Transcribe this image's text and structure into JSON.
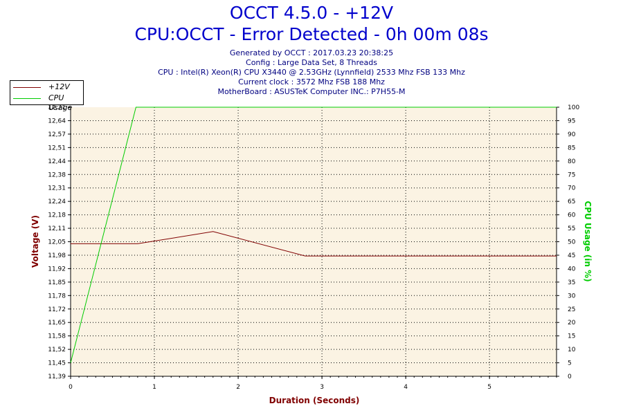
{
  "header": {
    "title": "OCCT 4.5.0 - +12V",
    "subtitle": "CPU:OCCT - Error Detected - 0h 00m 08s",
    "info_lines": [
      "Generated by OCCT : 2017.03.23 20:38:25",
      "Config : Large Data Set, 8 Threads",
      "CPU : Intel(R) Xeon(R) CPU X3440 @ 2.53GHz (Lynnfield) 2533 Mhz FSB 133 Mhz",
      "Current clock : 3572 Mhz FSB 188 Mhz",
      "MotherBoard : ASUSTeK Computer INC.: P7H55-M"
    ]
  },
  "legend": {
    "items": [
      {
        "label": "+12V",
        "color": "#800000"
      },
      {
        "label": "CPU Usage",
        "color": "#00cc00"
      }
    ]
  },
  "colors": {
    "plot_background": "#fbf3e3",
    "voltage": "#800000",
    "cpu": "#00cc00",
    "title": "#0000cc",
    "info": "#000080"
  },
  "chart_data": {
    "type": "line",
    "xlabel": "Duration (Seconds)",
    "ylabel": "Voltage (V)",
    "y2label": "CPU Usage (in %)",
    "xlim": [
      0,
      5.8
    ],
    "ylim": [
      11.39,
      12.71
    ],
    "y2lim": [
      0,
      100
    ],
    "x_ticks": [
      0,
      1,
      2,
      3,
      4,
      5
    ],
    "y_ticks": [
      "11,39",
      "11,45",
      "11,52",
      "11,58",
      "11,65",
      "11,72",
      "11,78",
      "11,85",
      "11,92",
      "11,98",
      "12,05",
      "12,11",
      "12,18",
      "12,24",
      "12,31",
      "12,38",
      "12,44",
      "12,51",
      "12,57",
      "12,64",
      "12,71"
    ],
    "y2_ticks": [
      0,
      5,
      10,
      15,
      20,
      25,
      30,
      35,
      40,
      45,
      50,
      55,
      60,
      65,
      70,
      75,
      80,
      85,
      90,
      95,
      100
    ],
    "grid": true,
    "legend_position": "top-left",
    "series": [
      {
        "name": "+12V",
        "axis": "left",
        "x": [
          0,
          0.8,
          1.7,
          2.8,
          3.5,
          5.8
        ],
        "values": [
          12.04,
          12.04,
          12.1,
          11.98,
          11.98,
          11.98
        ]
      },
      {
        "name": "CPU Usage",
        "axis": "right",
        "x": [
          0,
          0.78,
          5.8
        ],
        "values": [
          5,
          100,
          100
        ]
      }
    ]
  }
}
